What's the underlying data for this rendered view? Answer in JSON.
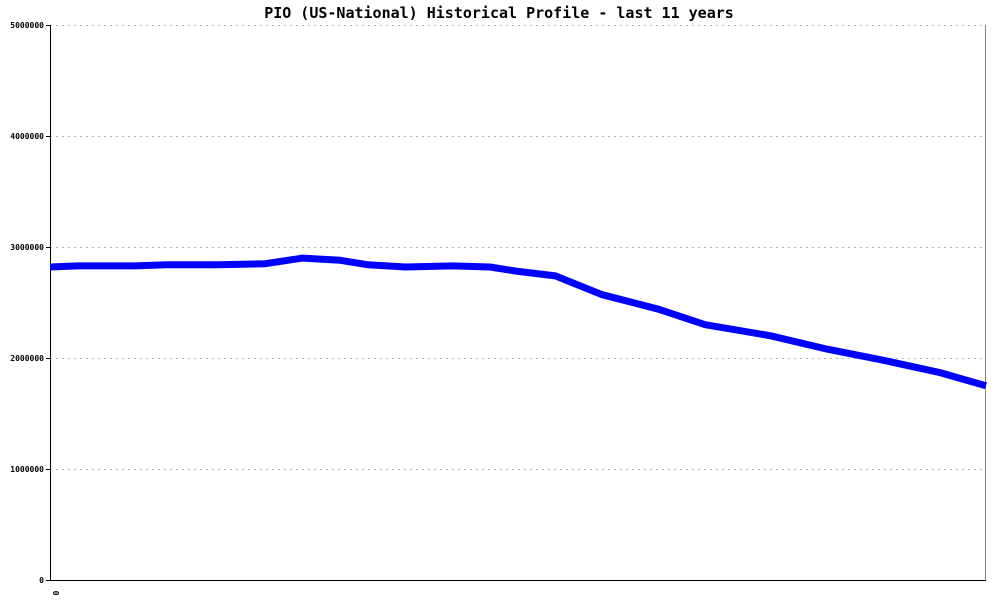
{
  "chart_data": {
    "type": "line",
    "title": "PIO (US-National) Historical Profile - last 11 years",
    "xlabel": "",
    "ylabel": "",
    "x_tick_labels": [
      "0"
    ],
    "y_ticks": [
      0,
      1000000,
      2000000,
      3000000,
      4000000,
      5000000
    ],
    "y_tick_labels": [
      "0",
      "1000000",
      "2000000",
      "3000000",
      "4000000",
      "5000000"
    ],
    "ylim": [
      0,
      5000000
    ],
    "xlim": [
      0,
      1
    ],
    "grid": true,
    "legend": "none",
    "series": [
      {
        "color": "#0000ff",
        "x": [
          0.0,
          0.03,
          0.09,
          0.125,
          0.18,
          0.23,
          0.27,
          0.31,
          0.34,
          0.38,
          0.43,
          0.47,
          0.5,
          0.54,
          0.59,
          0.65,
          0.7,
          0.77,
          0.83,
          0.89,
          0.95,
          1.0
        ],
        "y": [
          2820000,
          2830000,
          2830000,
          2840000,
          2840000,
          2850000,
          2900000,
          2880000,
          2840000,
          2820000,
          2830000,
          2820000,
          2780000,
          2740000,
          2570000,
          2440000,
          2300000,
          2200000,
          2080000,
          1980000,
          1870000,
          1750000
        ]
      }
    ]
  }
}
